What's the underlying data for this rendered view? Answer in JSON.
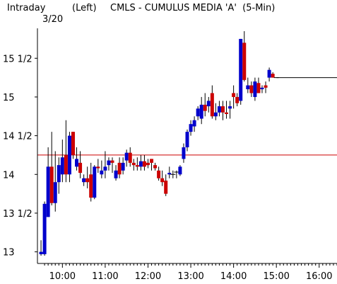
{
  "chart_data": {
    "type": "candlestick",
    "title": "CMLS - CUMULUS MEDIA 'A'  (5-Min)",
    "period_label": "Intraday",
    "date_label": "3/20",
    "axis_side_label": "(Left)",
    "ylim": [
      12.85,
      15.85
    ],
    "y_ticks": [
      {
        "value": 13.0,
        "label": "13"
      },
      {
        "value": 13.5,
        "label": "13 1/2"
      },
      {
        "value": 14.0,
        "label": "14"
      },
      {
        "value": 14.5,
        "label": "14 1/2"
      },
      {
        "value": 15.0,
        "label": "15"
      },
      {
        "value": 15.5,
        "label": "15 1/2"
      }
    ],
    "x_range_minutes": [
      565,
      985
    ],
    "x_ticks": [
      {
        "minute": 600,
        "label": "10:00"
      },
      {
        "minute": 660,
        "label": "11:00"
      },
      {
        "minute": 720,
        "label": "12:00"
      },
      {
        "minute": 780,
        "label": "13:00"
      },
      {
        "minute": 840,
        "label": "14:00"
      },
      {
        "minute": 900,
        "label": "15:00"
      },
      {
        "minute": 960,
        "label": "16:00"
      }
    ],
    "reference_line": {
      "value": 14.25,
      "color": "#cc0000"
    },
    "colors": {
      "up": "#0000cc",
      "down": "#cc0000",
      "wick": "#000000",
      "axis": "#000000"
    },
    "candles": [
      {
        "t": "9:30",
        "o": 12.97,
        "h": 13.15,
        "l": 12.95,
        "c": 13.0
      },
      {
        "t": "9:35",
        "o": 12.97,
        "h": 13.65,
        "l": 12.95,
        "c": 13.62
      },
      {
        "t": "9:40",
        "o": 13.45,
        "h": 14.35,
        "l": 13.45,
        "c": 14.1
      },
      {
        "t": "9:45",
        "o": 14.1,
        "h": 14.55,
        "l": 13.6,
        "c": 13.63
      },
      {
        "t": "9:50",
        "o": 13.63,
        "h": 14.3,
        "l": 13.52,
        "c": 13.9
      },
      {
        "t": "9:55",
        "o": 13.9,
        "h": 14.22,
        "l": 13.75,
        "c": 14.12
      },
      {
        "t": "10:00",
        "o": 14.0,
        "h": 14.45,
        "l": 13.9,
        "c": 14.22
      },
      {
        "t": "10:05",
        "o": 14.25,
        "h": 14.7,
        "l": 13.9,
        "c": 14.0
      },
      {
        "t": "10:10",
        "o": 14.0,
        "h": 14.55,
        "l": 13.9,
        "c": 14.5
      },
      {
        "t": "10:15",
        "o": 14.55,
        "h": 14.55,
        "l": 14.2,
        "c": 14.25
      },
      {
        "t": "10:20",
        "o": 14.1,
        "h": 14.35,
        "l": 14.05,
        "c": 14.2
      },
      {
        "t": "10:25",
        "o": 14.15,
        "h": 14.3,
        "l": 13.95,
        "c": 14.02
      },
      {
        "t": "10:30",
        "o": 13.9,
        "h": 14.0,
        "l": 13.85,
        "c": 13.95
      },
      {
        "t": "10:35",
        "o": 13.95,
        "h": 14.1,
        "l": 13.82,
        "c": 13.9
      },
      {
        "t": "10:40",
        "o": 14.0,
        "h": 14.15,
        "l": 13.65,
        "c": 13.7
      },
      {
        "t": "10:45",
        "o": 13.7,
        "h": 14.12,
        "l": 13.68,
        "c": 14.1
      },
      {
        "t": "10:50",
        "o": 14.1,
        "h": 14.2,
        "l": 14.02,
        "c": 14.08
      },
      {
        "t": "10:55",
        "o": 14.0,
        "h": 14.18,
        "l": 13.95,
        "c": 14.05
      },
      {
        "t": "11:00",
        "o": 14.05,
        "h": 14.3,
        "l": 13.95,
        "c": 14.1
      },
      {
        "t": "11:05",
        "o": 14.12,
        "h": 14.22,
        "l": 14.05,
        "c": 14.18
      },
      {
        "t": "11:10",
        "o": 14.18,
        "h": 14.22,
        "l": 14.02,
        "c": 14.15
      },
      {
        "t": "11:15",
        "o": 13.95,
        "h": 14.12,
        "l": 13.92,
        "c": 14.05
      },
      {
        "t": "11:20",
        "o": 14.15,
        "h": 14.22,
        "l": 13.95,
        "c": 14.0
      },
      {
        "t": "11:25",
        "o": 14.05,
        "h": 14.22,
        "l": 14.0,
        "c": 14.15
      },
      {
        "t": "11:30",
        "o": 14.18,
        "h": 14.32,
        "l": 14.1,
        "c": 14.28
      },
      {
        "t": "11:35",
        "o": 14.28,
        "h": 14.35,
        "l": 14.1,
        "c": 14.15
      },
      {
        "t": "11:40",
        "o": 14.15,
        "h": 14.2,
        "l": 14.05,
        "c": 14.12
      },
      {
        "t": "11:45",
        "o": 14.12,
        "h": 14.22,
        "l": 14.05,
        "c": 14.1
      },
      {
        "t": "11:50",
        "o": 14.1,
        "h": 14.25,
        "l": 14.05,
        "c": 14.17
      },
      {
        "t": "11:55",
        "o": 14.17,
        "h": 14.25,
        "l": 14.05,
        "c": 14.1
      },
      {
        "t": "12:00",
        "o": 14.15,
        "h": 14.2,
        "l": 14.08,
        "c": 14.12
      },
      {
        "t": "12:05",
        "o": 14.2,
        "h": 14.2,
        "l": 14.05,
        "c": 14.15
      },
      {
        "t": "12:10",
        "o": 14.12,
        "h": 14.15,
        "l": 14.05,
        "c": 14.08
      },
      {
        "t": "12:15",
        "o": 14.05,
        "h": 14.1,
        "l": 13.92,
        "c": 13.95
      },
      {
        "t": "12:20",
        "o": 13.95,
        "h": 14.05,
        "l": 13.85,
        "c": 13.9
      },
      {
        "t": "12:25",
        "o": 13.92,
        "h": 14.0,
        "l": 13.72,
        "c": 13.75
      },
      {
        "t": "12:30",
        "o": 14.0,
        "h": 14.1,
        "l": 13.95,
        "c": 14.02
      },
      {
        "t": "12:35",
        "o": 14.0,
        "h": 14.05,
        "l": 13.95,
        "c": 14.0
      },
      {
        "t": "12:40",
        "o": 14.02,
        "h": 14.05,
        "l": 13.95,
        "c": 14.03
      },
      {
        "t": "12:45",
        "o": 14.0,
        "h": 14.12,
        "l": 13.98,
        "c": 14.1
      },
      {
        "t": "12:50",
        "o": 14.2,
        "h": 14.4,
        "l": 14.15,
        "c": 14.35
      },
      {
        "t": "12:55",
        "o": 14.35,
        "h": 14.58,
        "l": 14.3,
        "c": 14.55
      },
      {
        "t": "13:00",
        "o": 14.55,
        "h": 14.7,
        "l": 14.5,
        "c": 14.65
      },
      {
        "t": "13:05",
        "o": 14.62,
        "h": 14.75,
        "l": 14.55,
        "c": 14.7
      },
      {
        "t": "13:10",
        "o": 14.75,
        "h": 14.88,
        "l": 14.7,
        "c": 14.85
      },
      {
        "t": "13:15",
        "o": 14.72,
        "h": 15.0,
        "l": 14.65,
        "c": 14.9
      },
      {
        "t": "13:20",
        "o": 14.9,
        "h": 15.05,
        "l": 14.75,
        "c": 14.82
      },
      {
        "t": "13:25",
        "o": 14.88,
        "h": 15.0,
        "l": 14.8,
        "c": 14.95
      },
      {
        "t": "13:30",
        "o": 15.05,
        "h": 15.15,
        "l": 14.72,
        "c": 14.75
      },
      {
        "t": "13:35",
        "o": 14.75,
        "h": 14.92,
        "l": 14.7,
        "c": 14.8
      },
      {
        "t": "13:40",
        "o": 14.8,
        "h": 14.95,
        "l": 14.75,
        "c": 14.88
      },
      {
        "t": "13:45",
        "o": 14.88,
        "h": 14.95,
        "l": 14.7,
        "c": 14.8
      },
      {
        "t": "13:50",
        "o": 14.8,
        "h": 14.95,
        "l": 14.72,
        "c": 14.78
      },
      {
        "t": "13:55",
        "o": 14.85,
        "h": 14.95,
        "l": 14.72,
        "c": 14.88
      },
      {
        "t": "14:00",
        "o": 15.05,
        "h": 15.15,
        "l": 14.85,
        "c": 15.0
      },
      {
        "t": "14:05",
        "o": 15.0,
        "h": 15.05,
        "l": 14.88,
        "c": 14.92
      },
      {
        "t": "14:10",
        "o": 14.95,
        "h": 15.75,
        "l": 14.9,
        "c": 15.75
      },
      {
        "t": "14:15",
        "o": 15.7,
        "h": 15.85,
        "l": 15.2,
        "c": 15.22
      },
      {
        "t": "14:20",
        "o": 15.1,
        "h": 15.25,
        "l": 15.05,
        "c": 15.15
      },
      {
        "t": "14:25",
        "o": 15.15,
        "h": 15.2,
        "l": 15.0,
        "c": 15.05
      },
      {
        "t": "14:30",
        "o": 15.0,
        "h": 15.25,
        "l": 14.95,
        "c": 15.2
      },
      {
        "t": "14:35",
        "o": 15.18,
        "h": 15.25,
        "l": 15.05,
        "c": 15.05
      },
      {
        "t": "14:40",
        "o": 15.1,
        "h": 15.15,
        "l": 15.05,
        "c": 15.12
      },
      {
        "t": "14:45",
        "o": 15.15,
        "h": 15.2,
        "l": 15.05,
        "c": 15.12
      },
      {
        "t": "14:50",
        "o": 15.25,
        "h": 15.38,
        "l": 15.2,
        "c": 15.35
      },
      {
        "t": "14:55",
        "o": 15.3,
        "h": 15.32,
        "l": 15.25,
        "c": 15.25
      },
      {
        "t": "15:00",
        "o": 15.25,
        "h": 15.25,
        "l": 15.25,
        "c": 15.25
      }
    ]
  }
}
